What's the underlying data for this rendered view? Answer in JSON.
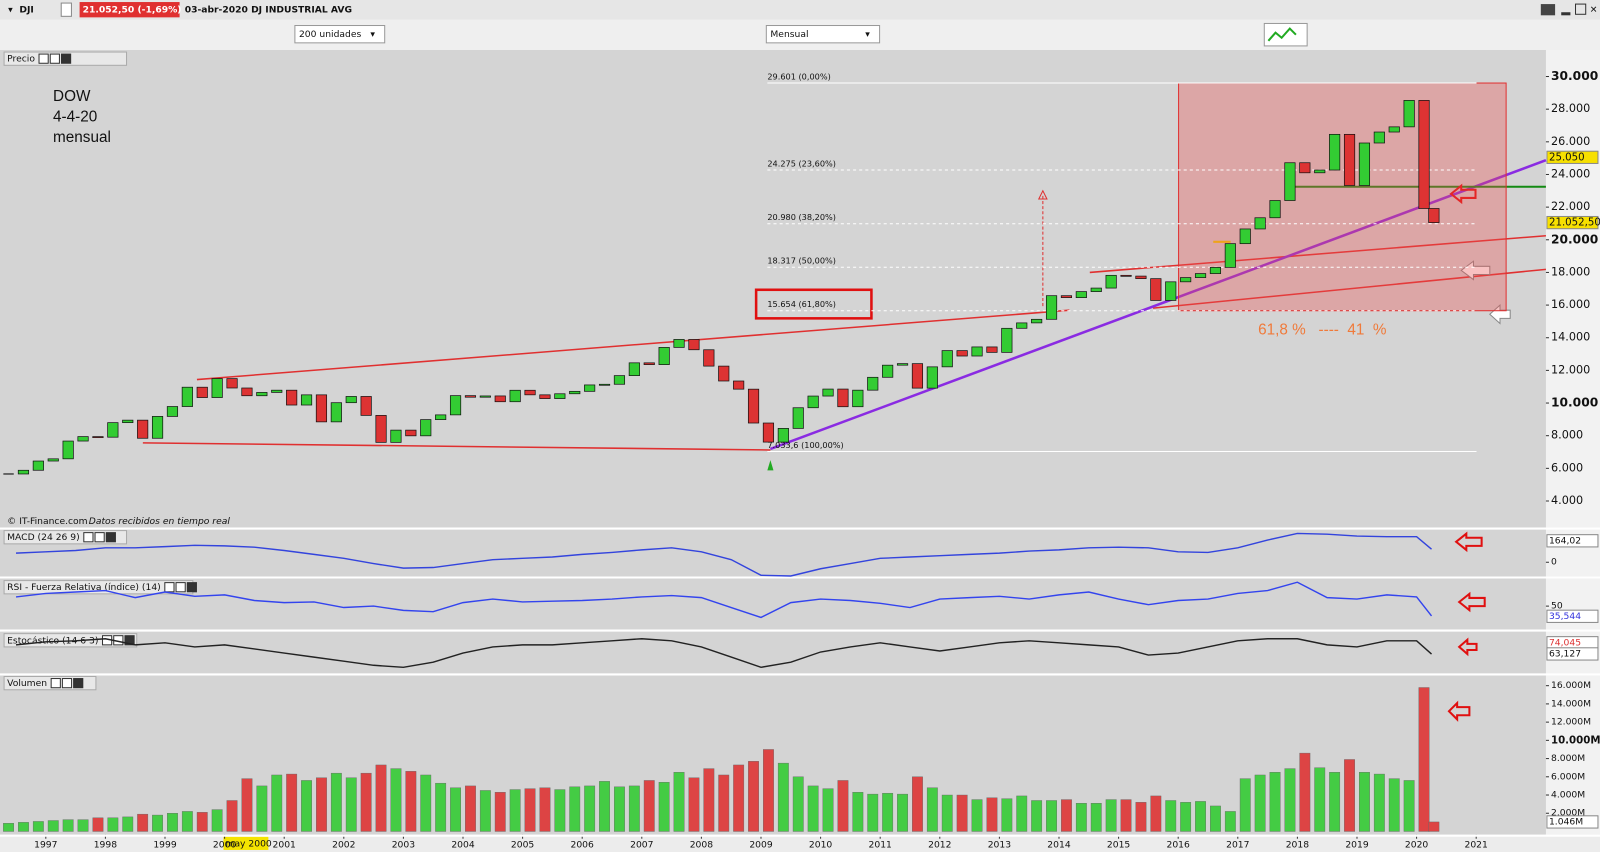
{
  "toolbar": {
    "symbol": "DJI",
    "quote": "21.052,50 (-1,69%)",
    "title": "03-abr-2020 DJ INDUSTRIAL AVG",
    "units": "200 unidades",
    "period": "Mensual"
  },
  "chart_data": [
    {
      "type": "candlestick",
      "title": "Precio",
      "annotations": [
        "DOW",
        "4-4-20",
        "mensual"
      ],
      "note": "61,8 %   ----  41  %",
      "source": "© IT-Finance.com",
      "source_note": "Datos recibidos en tiempo real",
      "cursor_label": "may 2000",
      "up_color": "#33cc33",
      "down_color": "#dd3333",
      "x": [
        1996.375,
        1996.625,
        1996.875,
        1997.125,
        1997.375,
        1997.625,
        1997.875,
        1998.125,
        1998.375,
        1998.625,
        1998.875,
        1999.125,
        1999.375,
        1999.625,
        1999.875,
        2000.125,
        2000.375,
        2000.625,
        2000.875,
        2001.125,
        2001.375,
        2001.625,
        2001.875,
        2002.125,
        2002.375,
        2002.625,
        2002.875,
        2003.125,
        2003.375,
        2003.625,
        2003.875,
        2004.125,
        2004.375,
        2004.625,
        2004.875,
        2005.125,
        2005.375,
        2005.625,
        2005.875,
        2006.125,
        2006.375,
        2006.625,
        2006.875,
        2007.125,
        2007.375,
        2007.625,
        2007.875,
        2008.125,
        2008.375,
        2008.625,
        2008.875,
        2009.125,
        2009.375,
        2009.625,
        2009.875,
        2010.125,
        2010.375,
        2010.625,
        2010.875,
        2011.125,
        2011.375,
        2011.625,
        2011.875,
        2012.125,
        2012.375,
        2012.625,
        2012.875,
        2013.125,
        2013.375,
        2013.625,
        2013.875,
        2014.125,
        2014.375,
        2014.625,
        2014.875,
        2015.125,
        2015.375,
        2015.625,
        2015.875,
        2016.125,
        2016.375,
        2016.625,
        2016.875,
        2017.125,
        2017.375,
        2017.625,
        2017.875,
        2018.125,
        2018.375,
        2018.625,
        2018.875,
        2019.125,
        2019.375,
        2019.625,
        2019.875,
        2020.125,
        2020.29
      ],
      "values": [
        5655,
        5882,
        6448,
        6583,
        7672,
        7945,
        7908,
        8799,
        8952,
        7842,
        9181,
        9786,
        10970,
        10336,
        11497,
        10921,
        10447,
        10650,
        10787,
        9878,
        10502,
        8847,
        10021,
        10403,
        9243,
        7591,
        8341,
        7992,
        8985,
        9275,
        10453,
        10357,
        10435,
        10080,
        10783,
        10503,
        10274,
        10568,
        10717,
        11109,
        11150,
        11679,
        12463,
        12354,
        13408,
        13895,
        13264,
        12262,
        11350,
        10850,
        8776,
        7608,
        8447,
        9712,
        10428,
        10856,
        9774,
        10788,
        11577,
        12319,
        12414,
        10913,
        12217,
        13212,
        12880,
        13437,
        13104,
        14578,
        14909,
        15129,
        16576,
        16457,
        16826,
        17042,
        17823,
        17776,
        17619,
        16284,
        17425,
        17685,
        17930,
        18308,
        19762,
        20663,
        21349,
        22405,
        24719,
        24103,
        24271,
        26458,
        23327,
        25928,
        26600,
        26917,
        28538,
        21917,
        21052.5
      ],
      "xlim": [
        1996.3,
        2022.17
      ],
      "xticks": [
        1997,
        1998,
        1999,
        2000,
        2001,
        2002,
        2003,
        2004,
        2005,
        2006,
        2007,
        2008,
        2009,
        2010,
        2011,
        2012,
        2013,
        2014,
        2015,
        2016,
        2017,
        2018,
        2019,
        2020,
        2021
      ],
      "ylim": [
        2375,
        31562
      ],
      "yticks": [
        {
          "value": 4000,
          "label": "4.000"
        },
        {
          "value": 6000,
          "label": "6.000"
        },
        {
          "value": 8000,
          "label": "8.000"
        },
        {
          "value": 10000,
          "label": "10.000"
        },
        {
          "value": 12000,
          "label": "12.000"
        },
        {
          "value": 14000,
          "label": "14.000"
        },
        {
          "value": 16000,
          "label": "16.000"
        },
        {
          "value": 18000,
          "label": "18.000"
        },
        {
          "value": 20000,
          "label": "20.000"
        },
        {
          "value": 22000,
          "label": "22.000"
        },
        {
          "value": 24000,
          "label": "24.000"
        },
        {
          "value": 26000,
          "label": "26.000"
        },
        {
          "value": 28000,
          "label": "28.000"
        },
        {
          "value": 30000,
          "label": "30.000"
        }
      ],
      "price_labels": [
        {
          "value": 25050,
          "label": "25.050"
        },
        {
          "value": 21052.5,
          "label": "21.052,50"
        }
      ],
      "fib_levels": [
        {
          "value": 29601,
          "label": "29.601 (0,00%)"
        },
        {
          "value": 24275,
          "label": "24.275 (23,60%)"
        },
        {
          "value": 20980,
          "label": "20.980 (38,20%)"
        },
        {
          "value": 18317,
          "label": "18.317 (50,00%)"
        },
        {
          "value": 15654,
          "label": "15.654 (61,80%)"
        },
        {
          "value": 7033.6,
          "label": "7.033,6 (100,00%)"
        }
      ]
    },
    {
      "type": "line",
      "title": "MACD (24 26 9)",
      "color": "#3344dd",
      "x": [
        1996.5,
        1997,
        1997.5,
        1998,
        1998.5,
        1999,
        1999.5,
        2000,
        2000.5,
        2001,
        2001.5,
        2002,
        2002.5,
        2003,
        2003.5,
        2004,
        2004.5,
        2005,
        2005.5,
        2006,
        2006.5,
        2007,
        2007.5,
        2008,
        2008.5,
        2009,
        2009.5,
        2010,
        2010.5,
        2011,
        2011.5,
        2012,
        2012.5,
        2013,
        2013.5,
        2014,
        2014.5,
        2015,
        2015.5,
        2016,
        2016.5,
        2017,
        2017.5,
        2018,
        2018.5,
        2019,
        2019.5,
        2020,
        2020.25
      ],
      "values": [
        70,
        80,
        90,
        110,
        110,
        120,
        130,
        125,
        115,
        90,
        60,
        30,
        -10,
        -45,
        -40,
        -10,
        20,
        30,
        40,
        60,
        75,
        95,
        110,
        80,
        20,
        -100,
        -105,
        -50,
        -10,
        30,
        40,
        50,
        60,
        70,
        85,
        95,
        110,
        115,
        110,
        80,
        75,
        110,
        170,
        220,
        215,
        200,
        195,
        195,
        100
      ],
      "ylim": [
        -109,
        250
      ],
      "yticks": [
        0
      ],
      "right_labels": [
        {
          "value": 164.02,
          "label": "164,02"
        }
      ]
    },
    {
      "type": "line",
      "title": "RSI - Fuerza Relativa (índice) (14)",
      "color": "#3344ee",
      "x": [
        1996.5,
        1997,
        1997.5,
        1998,
        1998.5,
        1999,
        1999.5,
        2000,
        2000.5,
        2001,
        2001.5,
        2002,
        2002.5,
        2003,
        2003.5,
        2004,
        2004.5,
        2005,
        2005.5,
        2006,
        2006.5,
        2007,
        2007.5,
        2008,
        2008.5,
        2009,
        2009.5,
        2010,
        2010.5,
        2011,
        2011.5,
        2012,
        2012.5,
        2013,
        2013.5,
        2014,
        2014.5,
        2015,
        2015.5,
        2016,
        2016.5,
        2017,
        2017.5,
        2018,
        2018.5,
        2019,
        2019.5,
        2020,
        2020.25
      ],
      "values": [
        63,
        68,
        70,
        72,
        62,
        70,
        64,
        66,
        58,
        55,
        56,
        48,
        50,
        44,
        42,
        55,
        60,
        56,
        57,
        58,
        60,
        63,
        65,
        62,
        48,
        34,
        55,
        60,
        58,
        54,
        48,
        60,
        62,
        64,
        60,
        66,
        70,
        60,
        52,
        58,
        60,
        68,
        72,
        84,
        62,
        60,
        66,
        63,
        36
      ],
      "ylim": [
        16.7,
        87.7
      ],
      "yticks": [
        50
      ],
      "right_labels": [
        {
          "value": 35.544,
          "label": "35,544"
        }
      ]
    },
    {
      "type": "line",
      "title": "Estocástico (14 6 3)",
      "color": "#222222",
      "x": [
        1996.5,
        1997,
        1997.5,
        1998,
        1998.5,
        1999,
        1999.5,
        2000,
        2000.5,
        2001,
        2001.5,
        2002,
        2002.5,
        2003,
        2003.5,
        2004,
        2004.5,
        2005,
        2005.5,
        2006,
        2006.5,
        2007,
        2007.5,
        2008,
        2008.5,
        2009,
        2009.5,
        2010,
        2010.5,
        2011,
        2011.5,
        2012,
        2012.5,
        2013,
        2013.5,
        2014,
        2014.5,
        2015,
        2015.5,
        2016,
        2016.5,
        2017,
        2017.5,
        2018,
        2018.5,
        2019,
        2019.5,
        2020,
        2020.25
      ],
      "values": [
        72,
        75,
        76,
        78,
        72,
        74,
        70,
        72,
        68,
        64,
        60,
        56,
        52,
        50,
        55,
        64,
        70,
        72,
        72,
        74,
        76,
        78,
        76,
        70,
        60,
        50,
        55,
        65,
        70,
        74,
        70,
        66,
        70,
        74,
        76,
        74,
        72,
        70,
        62,
        64,
        70,
        76,
        78,
        78,
        72,
        70,
        76,
        76,
        63
      ],
      "ylim": [
        44,
        84
      ],
      "right_labels": [
        {
          "value": 74.045,
          "label": "74,045"
        },
        {
          "value": 63.127,
          "label": "63,127"
        }
      ]
    },
    {
      "type": "bar",
      "title": "Volumen",
      "up_color": "#44cc44",
      "down_color": "#dd4444",
      "x": [
        1996.375,
        1996.625,
        1996.875,
        1997.125,
        1997.375,
        1997.625,
        1997.875,
        1998.125,
        1998.375,
        1998.625,
        1998.875,
        1999.125,
        1999.375,
        1999.625,
        1999.875,
        2000.125,
        2000.375,
        2000.625,
        2000.875,
        2001.125,
        2001.375,
        2001.625,
        2001.875,
        2002.125,
        2002.375,
        2002.625,
        2002.875,
        2003.125,
        2003.375,
        2003.625,
        2003.875,
        2004.125,
        2004.375,
        2004.625,
        2004.875,
        2005.125,
        2005.375,
        2005.625,
        2005.875,
        2006.125,
        2006.375,
        2006.625,
        2006.875,
        2007.125,
        2007.375,
        2007.625,
        2007.875,
        2008.125,
        2008.375,
        2008.625,
        2008.875,
        2009.125,
        2009.375,
        2009.625,
        2009.875,
        2010.125,
        2010.375,
        2010.625,
        2010.875,
        2011.125,
        2011.375,
        2011.625,
        2011.875,
        2012.125,
        2012.375,
        2012.625,
        2012.875,
        2013.125,
        2013.375,
        2013.625,
        2013.875,
        2014.125,
        2014.375,
        2014.625,
        2014.875,
        2015.125,
        2015.375,
        2015.625,
        2015.875,
        2016.125,
        2016.375,
        2016.625,
        2016.875,
        2017.125,
        2017.375,
        2017.625,
        2017.875,
        2018.125,
        2018.375,
        2018.625,
        2018.875,
        2019.125,
        2019.375,
        2019.625,
        2019.875,
        2020.125,
        2020.29
      ],
      "values": [
        900,
        1000,
        1100,
        1200,
        1300,
        1300,
        1500,
        1500,
        1600,
        1900,
        1800,
        2000,
        2200,
        2100,
        2400,
        3400,
        5800,
        5000,
        6200,
        6300,
        5600,
        5900,
        6400,
        5900,
        6400,
        7300,
        6900,
        6600,
        6200,
        5300,
        4800,
        5000,
        4500,
        4300,
        4600,
        4700,
        4800,
        4600,
        4900,
        5000,
        5500,
        4900,
        5000,
        5600,
        5400,
        6500,
        5900,
        6900,
        6200,
        7300,
        7700,
        9000,
        7500,
        6000,
        5000,
        4700,
        5600,
        4300,
        4100,
        4200,
        4100,
        6000,
        4800,
        4000,
        4000,
        3500,
        3700,
        3600,
        3900,
        3400,
        3400,
        3500,
        3100,
        3100,
        3500,
        3500,
        3200,
        3900,
        3400,
        3200,
        3300,
        2800,
        2200,
        5800,
        6200,
        6500,
        6900,
        8600,
        7000,
        6500,
        7900,
        6500,
        6300,
        5800,
        5600,
        15800,
        1046
      ],
      "ylim": [
        -350,
        17120
      ],
      "yticks": [
        {
          "value": 2000,
          "label": "2.000M"
        },
        {
          "value": 4000,
          "label": "4.000M"
        },
        {
          "value": 6000,
          "label": "6.000M"
        },
        {
          "value": 8000,
          "label": "8.000M"
        },
        {
          "value": 10000,
          "label": "10.000M"
        },
        {
          "value": 12000,
          "label": "12.000M"
        },
        {
          "value": 14000,
          "label": "14.000M"
        },
        {
          "value": 16000,
          "label": "16.000M"
        }
      ],
      "right_labels": [
        {
          "value": 1046,
          "label": "1.046M"
        }
      ]
    }
  ]
}
